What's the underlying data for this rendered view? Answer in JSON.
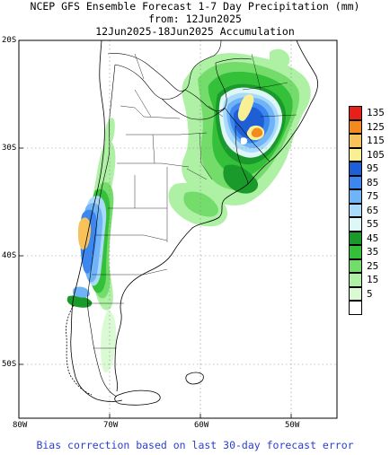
{
  "title": {
    "line1": "NCEP GFS Ensemble Forecast 1-7 Day Precipitation (mm)",
    "line2": "from: 12Jun2025",
    "line3": "12Jun2025-18Jun2025 Accumulation"
  },
  "latitude_labels": [
    "20S",
    "30S",
    "40S",
    "50S"
  ],
  "longitude_labels": [
    "80W",
    "70W",
    "60W",
    "50W"
  ],
  "legend": [
    {
      "label": "135",
      "color": "#e8201a"
    },
    {
      "label": "125",
      "color": "#f58a1c"
    },
    {
      "label": "115",
      "color": "#f8c25a"
    },
    {
      "label": "105",
      "color": "#f9ef93"
    },
    {
      "label": "95",
      "color": "#1f5fd6"
    },
    {
      "label": "85",
      "color": "#3b86ef"
    },
    {
      "label": "75",
      "color": "#70b3f7"
    },
    {
      "label": "65",
      "color": "#a9dafa"
    },
    {
      "label": "55",
      "color": "#ddf6f8"
    },
    {
      "label": "45",
      "color": "#1b9a2c"
    },
    {
      "label": "35",
      "color": "#35c03a"
    },
    {
      "label": "25",
      "color": "#74dc6b"
    },
    {
      "label": "15",
      "color": "#aef0a4"
    },
    {
      "label": "5",
      "color": "#dafad3"
    },
    {
      "label": "",
      "color": "#ffffff"
    }
  ],
  "footer": "Bias correction based on last 30-day forecast error"
}
